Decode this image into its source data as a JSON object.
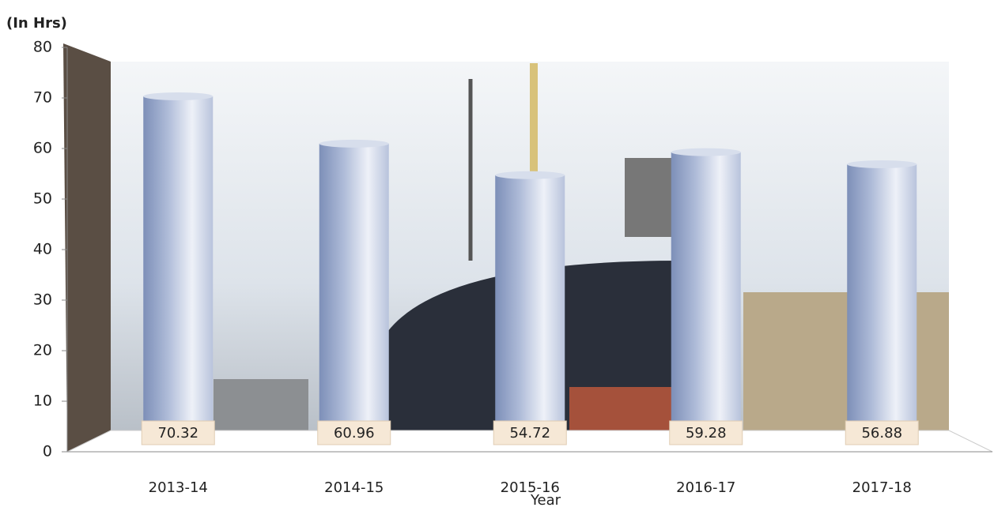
{
  "chart_data": {
    "type": "bar",
    "y_axis_label": "(In Hrs)",
    "x_axis_label": "Year",
    "categories": [
      "2013-14",
      "2014-15",
      "2015-16",
      "2016-17",
      "2017-18"
    ],
    "values": [
      70.32,
      60.96,
      54.72,
      59.28,
      56.88
    ],
    "color": "#8e9fc4",
    "ylim": [
      0,
      80
    ],
    "yticks": [
      0,
      10,
      20,
      30,
      40,
      50,
      60,
      70,
      80
    ]
  }
}
